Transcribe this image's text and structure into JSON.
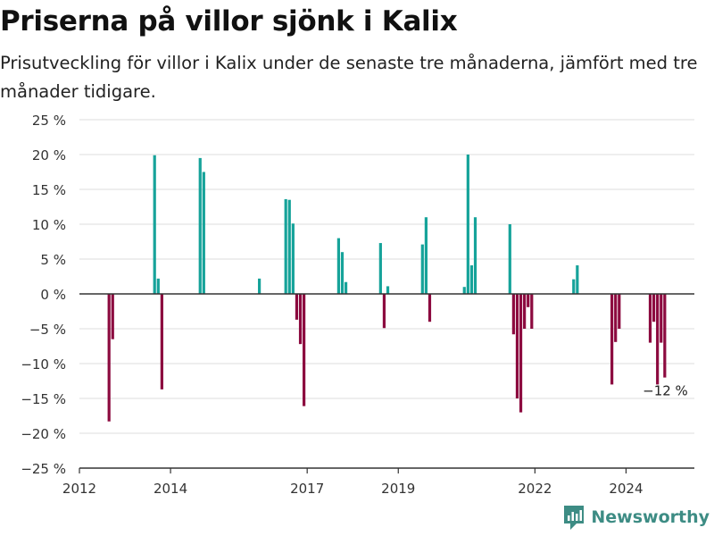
{
  "chart_data": {
    "type": "bar",
    "title": "Priserna på villor sjönk i Kalix",
    "subtitle": "Prisutveckling för villor i Kalix under de senaste tre månaderna, jämfört med tre månader tidigare.",
    "xlabel": "",
    "ylabel": "",
    "ylim": [
      -25,
      25
    ],
    "y_ticks": [
      25,
      20,
      15,
      10,
      5,
      0,
      -5,
      -10,
      -15,
      -20,
      -25
    ],
    "y_tick_labels": [
      "25 %",
      "20 %",
      "15 %",
      "10 %",
      "5 %",
      "0 %",
      "−5 %",
      "−10 %",
      "−15 %",
      "−20 %",
      "−25 %"
    ],
    "x_ticks": [
      2012,
      2014,
      2017,
      2019,
      2022,
      2024
    ],
    "x_tick_labels": [
      "2012",
      "2014",
      "2017",
      "2019",
      "2022",
      "2024"
    ],
    "grid": true,
    "colors": {
      "positive": "#16a39a",
      "negative": "#8c0a3f",
      "grid": "#dddddd",
      "axis": "#333333"
    },
    "series": [
      {
        "x": [
          2012.65,
          2012.73,
          2013.65,
          2013.73,
          2013.81,
          2014.65,
          2014.73,
          2015.95,
          2016.53,
          2016.61,
          2016.69,
          2016.77,
          2016.85,
          2016.93,
          2017.69,
          2017.77,
          2017.85,
          2018.61,
          2018.69,
          2018.77,
          2019.53,
          2019.61,
          2019.69,
          2020.45,
          2020.53,
          2020.61,
          2020.69,
          2021.45,
          2021.53,
          2021.61,
          2021.69,
          2021.77,
          2021.85,
          2021.93,
          2022.85,
          2022.93,
          2023.69,
          2023.77,
          2023.85,
          2024.53,
          2024.61,
          2024.69,
          2024.77,
          2024.85
        ],
        "values": [
          -18.3,
          -6.5,
          19.9,
          2.2,
          -13.7,
          19.5,
          17.5,
          2.2,
          13.6,
          13.5,
          10.1,
          -3.7,
          -7.2,
          -16.1,
          8,
          6,
          1.7,
          7.3,
          -4.9,
          1.1,
          7.1,
          11,
          -4,
          1,
          20,
          4.1,
          11,
          10,
          -5.8,
          -15,
          -17,
          -5,
          -1.9,
          -5,
          2.1,
          4.1,
          -13,
          -6.9,
          -5,
          -7,
          -4,
          -13,
          -7,
          -12
        ]
      }
    ],
    "annotations": [
      {
        "x": 2024.85,
        "y": -12,
        "text": "−12 %"
      }
    ]
  },
  "brand": {
    "name": "Newsworthy",
    "icon": "newsworthy-logo-icon"
  }
}
